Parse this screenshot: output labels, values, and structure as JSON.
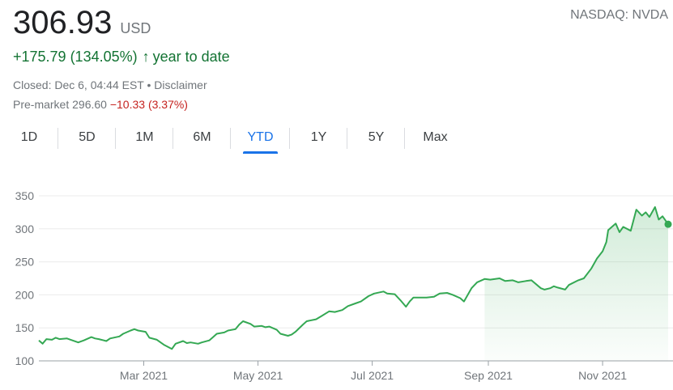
{
  "quote": {
    "price": "306.93",
    "currency": "USD",
    "exchange": "NASDAQ: NVDA",
    "change": "+175.79 (134.05%)",
    "change_arrow": "↑",
    "period_label": "year to date",
    "closed_text": "Closed: Dec 6, 04:44 EST • Disclaimer",
    "premarket_label": "Pre-market 296.60",
    "premarket_change": "−10.33 (3.37%)",
    "colors": {
      "positive": "#137333",
      "negative": "#c5221f",
      "line": "#34a853",
      "active_tab": "#1a73e8"
    }
  },
  "tabs": [
    {
      "label": "1D",
      "active": false
    },
    {
      "label": "5D",
      "active": false
    },
    {
      "label": "1M",
      "active": false
    },
    {
      "label": "6M",
      "active": false
    },
    {
      "label": "YTD",
      "active": true
    },
    {
      "label": "1Y",
      "active": false
    },
    {
      "label": "5Y",
      "active": false
    },
    {
      "label": "Max",
      "active": false
    }
  ],
  "chart_data": {
    "type": "area",
    "title": "",
    "xlabel": "",
    "ylabel": "",
    "ylim": [
      100,
      350
    ],
    "xlim": [
      "2021-01-04",
      "2021-12-06"
    ],
    "yticks": [
      100,
      150,
      200,
      250,
      300,
      350
    ],
    "xticks": [
      {
        "date": "2021-03-01",
        "label": "Mar 2021"
      },
      {
        "date": "2021-05-01",
        "label": "May 2021"
      },
      {
        "date": "2021-07-01",
        "label": "Jul 2021"
      },
      {
        "date": "2021-09-01",
        "label": "Sep 2021"
      },
      {
        "date": "2021-11-01",
        "label": "Nov 2021"
      }
    ],
    "grid": true,
    "series": [
      {
        "points": [
          [
            "2021-01-04",
            131
          ],
          [
            "2021-01-06",
            126
          ],
          [
            "2021-01-08",
            133
          ],
          [
            "2021-01-11",
            132
          ],
          [
            "2021-01-13",
            135
          ],
          [
            "2021-01-15",
            133
          ],
          [
            "2021-01-19",
            134
          ],
          [
            "2021-01-21",
            132
          ],
          [
            "2021-01-25",
            128
          ],
          [
            "2021-01-28",
            131
          ],
          [
            "2021-02-01",
            136
          ],
          [
            "2021-02-03",
            134
          ],
          [
            "2021-02-05",
            133
          ],
          [
            "2021-02-09",
            130
          ],
          [
            "2021-02-11",
            134
          ],
          [
            "2021-02-16",
            137
          ],
          [
            "2021-02-18",
            141
          ],
          [
            "2021-02-22",
            146
          ],
          [
            "2021-02-24",
            148
          ],
          [
            "2021-02-26",
            146
          ],
          [
            "2021-03-02",
            144
          ],
          [
            "2021-03-04",
            135
          ],
          [
            "2021-03-08",
            132
          ],
          [
            "2021-03-10",
            128
          ],
          [
            "2021-03-12",
            124
          ],
          [
            "2021-03-16",
            118
          ],
          [
            "2021-03-18",
            126
          ],
          [
            "2021-03-22",
            130
          ],
          [
            "2021-03-24",
            127
          ],
          [
            "2021-03-26",
            128
          ],
          [
            "2021-03-30",
            126
          ],
          [
            "2021-04-01",
            128
          ],
          [
            "2021-04-05",
            131
          ],
          [
            "2021-04-07",
            136
          ],
          [
            "2021-04-09",
            141
          ],
          [
            "2021-04-13",
            143
          ],
          [
            "2021-04-15",
            146
          ],
          [
            "2021-04-19",
            148
          ],
          [
            "2021-04-21",
            155
          ],
          [
            "2021-04-23",
            160
          ],
          [
            "2021-04-27",
            156
          ],
          [
            "2021-04-29",
            152
          ],
          [
            "2021-05-03",
            153
          ],
          [
            "2021-05-05",
            151
          ],
          [
            "2021-05-07",
            152
          ],
          [
            "2021-05-11",
            147
          ],
          [
            "2021-05-13",
            141
          ],
          [
            "2021-05-17",
            138
          ],
          [
            "2021-05-19",
            140
          ],
          [
            "2021-05-21",
            144
          ],
          [
            "2021-05-25",
            155
          ],
          [
            "2021-05-27",
            160
          ],
          [
            "2021-06-01",
            163
          ],
          [
            "2021-06-04",
            168
          ],
          [
            "2021-06-08",
            175
          ],
          [
            "2021-06-11",
            174
          ],
          [
            "2021-06-15",
            177
          ],
          [
            "2021-06-18",
            183
          ],
          [
            "2021-06-22",
            187
          ],
          [
            "2021-06-25",
            190
          ],
          [
            "2021-06-29",
            198
          ],
          [
            "2021-07-02",
            202
          ],
          [
            "2021-07-07",
            205
          ],
          [
            "2021-07-09",
            202
          ],
          [
            "2021-07-13",
            201
          ],
          [
            "2021-07-16",
            192
          ],
          [
            "2021-07-19",
            182
          ],
          [
            "2021-07-21",
            190
          ],
          [
            "2021-07-23",
            196
          ],
          [
            "2021-07-27",
            196
          ],
          [
            "2021-07-30",
            196
          ],
          [
            "2021-08-03",
            197
          ],
          [
            "2021-08-06",
            202
          ],
          [
            "2021-08-10",
            203
          ],
          [
            "2021-08-13",
            200
          ],
          [
            "2021-08-17",
            195
          ],
          [
            "2021-08-19",
            190
          ],
          [
            "2021-08-23",
            210
          ],
          [
            "2021-08-26",
            219
          ],
          [
            "2021-08-30",
            224
          ],
          [
            "2021-09-02",
            223
          ],
          [
            "2021-09-07",
            225
          ],
          [
            "2021-09-10",
            221
          ],
          [
            "2021-09-14",
            222
          ],
          [
            "2021-09-17",
            219
          ],
          [
            "2021-09-21",
            221
          ],
          [
            "2021-09-24",
            222
          ],
          [
            "2021-09-29",
            210
          ],
          [
            "2021-10-01",
            208
          ],
          [
            "2021-10-04",
            210
          ],
          [
            "2021-10-06",
            213
          ],
          [
            "2021-10-08",
            211
          ],
          [
            "2021-10-12",
            208
          ],
          [
            "2021-10-14",
            215
          ],
          [
            "2021-10-19",
            222
          ],
          [
            "2021-10-22",
            225
          ],
          [
            "2021-10-26",
            240
          ],
          [
            "2021-10-29",
            255
          ],
          [
            "2021-11-01",
            266
          ],
          [
            "2021-11-03",
            280
          ],
          [
            "2021-11-04",
            298
          ],
          [
            "2021-11-08",
            308
          ],
          [
            "2021-11-10",
            295
          ],
          [
            "2021-11-12",
            303
          ],
          [
            "2021-11-16",
            297
          ],
          [
            "2021-11-19",
            329
          ],
          [
            "2021-11-22",
            320
          ],
          [
            "2021-11-24",
            325
          ],
          [
            "2021-11-26",
            318
          ],
          [
            "2021-11-29",
            333
          ],
          [
            "2021-12-01",
            314
          ],
          [
            "2021-12-03",
            319
          ],
          [
            "2021-12-06",
            306.93
          ]
        ]
      }
    ]
  }
}
